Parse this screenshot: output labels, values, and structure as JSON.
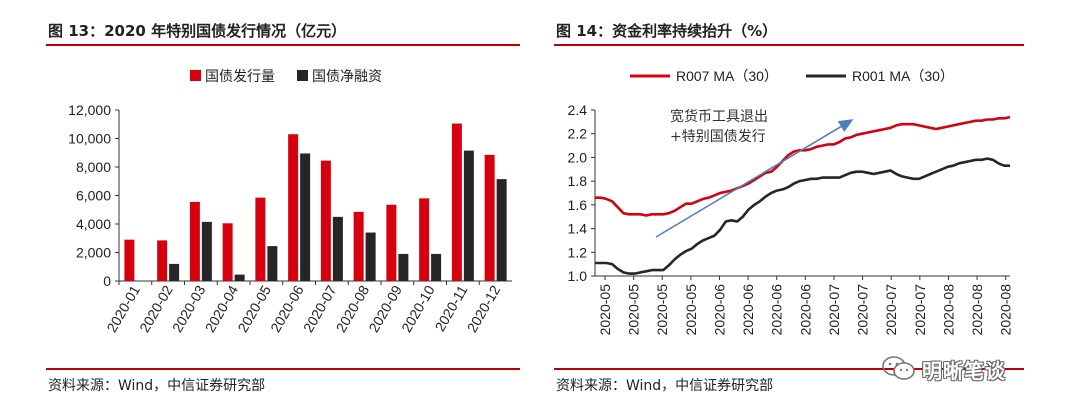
{
  "left": {
    "title": "图 13：2020 年特别国债发行情况（亿元）",
    "source": "资料来源：Wind，中信证券研究部"
  },
  "right": {
    "title": "图 14：资金利率持续抬升（%）",
    "source": "资料来源：Wind，中信证券研究部",
    "annotation": "宽货币工具退出+特别国债发行"
  },
  "watermark": {
    "text": "明晰笔谈",
    "icon": "wechat-icon"
  },
  "chart_data": [
    {
      "type": "bar",
      "title": "",
      "categories": [
        "2020-01",
        "2020-02",
        "2020-03",
        "2020-04",
        "2020-05",
        "2020-06",
        "2020-07",
        "2020-08",
        "2020-09",
        "2020-10",
        "2020-11",
        "2020-12"
      ],
      "series": [
        {
          "name": "国债发行量",
          "color": "#d7000f",
          "values": [
            2900,
            2850,
            5550,
            4050,
            5850,
            10300,
            8450,
            4850,
            5350,
            5800,
            11050,
            8850
          ]
        },
        {
          "name": "国债净融资",
          "color": "#262626",
          "values": [
            0,
            1200,
            4150,
            450,
            2450,
            8950,
            4500,
            3400,
            1900,
            1900,
            9150,
            7150
          ]
        }
      ],
      "ylim": [
        0,
        12000
      ],
      "yticks": [
        "0",
        "2,000",
        "4,000",
        "6,000",
        "8,000",
        "10,000",
        "12,000"
      ],
      "legend": "top",
      "grid": false
    },
    {
      "type": "line",
      "title": "",
      "x_ticks": [
        "2020-05",
        "2020-05",
        "2020-05",
        "2020-05",
        "2020-06",
        "2020-06",
        "2020-06",
        "2020-06",
        "2020-07",
        "2020-07",
        "2020-07",
        "2020-07",
        "2020-08",
        "2020-08",
        "2020-08"
      ],
      "series": [
        {
          "name": "R007 MA（30）",
          "color": "#d7000f",
          "values": [
            1.66,
            1.66,
            1.65,
            1.63,
            1.58,
            1.53,
            1.52,
            1.52,
            1.52,
            1.51,
            1.52,
            1.52,
            1.52,
            1.53,
            1.55,
            1.58,
            1.61,
            1.61,
            1.63,
            1.65,
            1.66,
            1.68,
            1.7,
            1.71,
            1.72,
            1.74,
            1.76,
            1.78,
            1.81,
            1.84,
            1.87,
            1.88,
            1.92,
            1.97,
            2.02,
            2.05,
            2.06,
            2.06,
            2.07,
            2.09,
            2.1,
            2.11,
            2.11,
            2.13,
            2.16,
            2.17,
            2.19,
            2.2,
            2.21,
            2.22,
            2.23,
            2.24,
            2.25,
            2.27,
            2.28,
            2.28,
            2.28,
            2.27,
            2.26,
            2.25,
            2.24,
            2.25,
            2.26,
            2.27,
            2.28,
            2.29,
            2.3,
            2.31,
            2.31,
            2.32,
            2.32,
            2.33,
            2.33,
            2.34
          ]
        },
        {
          "name": "R001 MA（30）",
          "color": "#262626",
          "values": [
            1.11,
            1.11,
            1.11,
            1.1,
            1.06,
            1.03,
            1.02,
            1.02,
            1.03,
            1.04,
            1.05,
            1.05,
            1.05,
            1.09,
            1.14,
            1.18,
            1.21,
            1.23,
            1.27,
            1.3,
            1.32,
            1.34,
            1.39,
            1.46,
            1.47,
            1.46,
            1.5,
            1.56,
            1.6,
            1.63,
            1.67,
            1.7,
            1.72,
            1.73,
            1.75,
            1.78,
            1.8,
            1.81,
            1.82,
            1.82,
            1.83,
            1.83,
            1.83,
            1.83,
            1.85,
            1.87,
            1.88,
            1.88,
            1.87,
            1.86,
            1.87,
            1.88,
            1.89,
            1.86,
            1.84,
            1.83,
            1.82,
            1.82,
            1.84,
            1.86,
            1.88,
            1.9,
            1.92,
            1.93,
            1.95,
            1.96,
            1.97,
            1.98,
            1.98,
            1.99,
            1.98,
            1.95,
            1.93,
            1.93
          ]
        }
      ],
      "ylim": [
        1.0,
        2.4
      ],
      "yticks": [
        "1.0",
        "1.2",
        "1.4",
        "1.6",
        "1.8",
        "2.0",
        "2.2",
        "2.4"
      ],
      "legend": "top",
      "grid": false
    }
  ]
}
